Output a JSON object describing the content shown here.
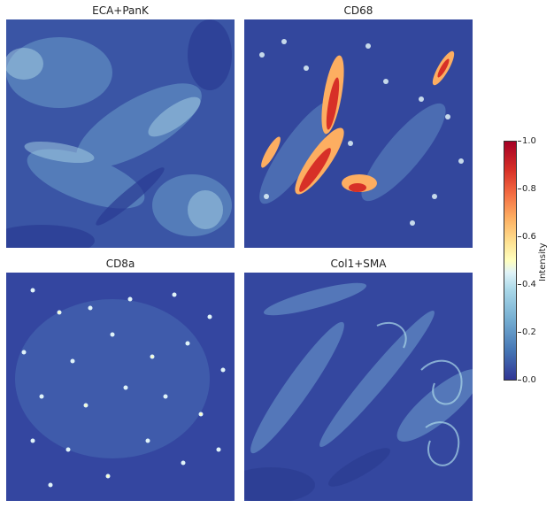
{
  "panels": [
    {
      "title": "ECA+PanK",
      "image": "tissue-fluorescence-eca-pank"
    },
    {
      "title": "CD68",
      "image": "tissue-fluorescence-cd68"
    },
    {
      "title": "CD8a",
      "image": "tissue-fluorescence-cd8a"
    },
    {
      "title": "Col1+SMA",
      "image": "tissue-fluorescence-col1-sma"
    }
  ],
  "colorbar": {
    "label": "Intensity",
    "ticks": [
      "0.0",
      "0.2",
      "0.4",
      "0.6",
      "0.8",
      "1.0"
    ],
    "colormap": "RdYlBu_r",
    "low_color": "#313695",
    "high_color": "#a50026"
  }
}
